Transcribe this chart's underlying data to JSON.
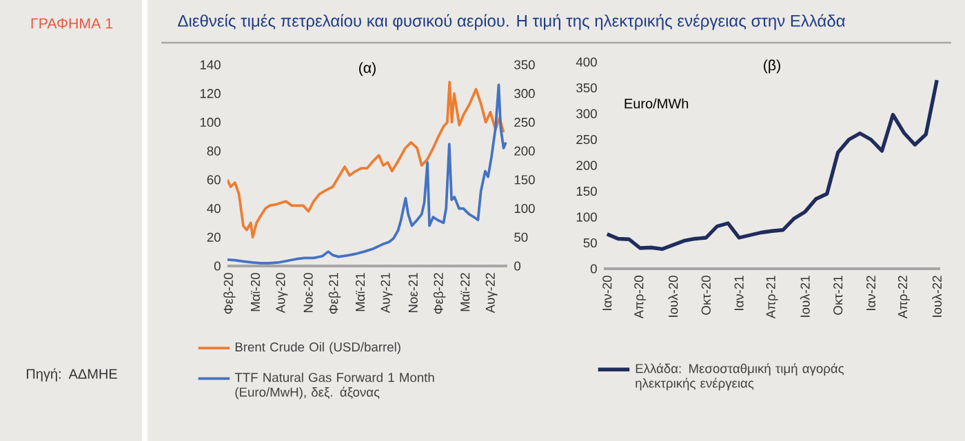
{
  "chart_data": [
    {
      "type": "line",
      "title": "(α)",
      "annotations": [
        "ΓΡΑΦΗΜΑ 1",
        "Διεθνείς τιμές πετρελαίου και φυσικού αερίου. Η τιμή της ηλεκτρικής ενέργειας στην Ελλάδα",
        "Πηγή: ΑΔΜΗΕ"
      ],
      "xlim": [
        "2020-01-25",
        "2022-09-25"
      ],
      "xticks": [
        {
          "value": "2020-02-01",
          "label": "Φεβ-20"
        },
        {
          "value": "2020-05-01",
          "label": "Μαϊ-20"
        },
        {
          "value": "2020-08-01",
          "label": "Αυγ-20"
        },
        {
          "value": "2020-11-01",
          "label": "Νοε-20"
        },
        {
          "value": "2021-02-01",
          "label": "Φεβ-21"
        },
        {
          "value": "2021-05-01",
          "label": "Μαϊ-21"
        },
        {
          "value": "2021-08-01",
          "label": "Αυγ-21"
        },
        {
          "value": "2021-11-01",
          "label": "Νοε-21"
        },
        {
          "value": "2022-02-01",
          "label": "Φεβ-22"
        },
        {
          "value": "2022-05-01",
          "label": "Μαϊ-22"
        },
        {
          "value": "2022-08-01",
          "label": "Αυγ-22"
        }
      ],
      "ylim": [
        0,
        140
      ],
      "yticks": [
        0,
        20,
        40,
        60,
        80,
        100,
        120,
        140
      ],
      "y2lim": [
        0,
        350
      ],
      "y2ticks": [
        0,
        50,
        100,
        150,
        200,
        250,
        300,
        350
      ],
      "legend": "bottom",
      "grid": false,
      "marker": "none",
      "line_style": "solid",
      "series": [
        {
          "name": "Brent Crude Oil (USD/barrel)",
          "color": "#ed7d31",
          "x": [
            "2020-01-25",
            "2020-02-05",
            "2020-02-20",
            "2020-03-05",
            "2020-03-20",
            "2020-04-01",
            "2020-04-15",
            "2020-04-22",
            "2020-05-05",
            "2020-05-20",
            "2020-06-05",
            "2020-06-20",
            "2020-07-15",
            "2020-08-15",
            "2020-09-05",
            "2020-09-25",
            "2020-10-15",
            "2020-11-02",
            "2020-11-20",
            "2020-12-10",
            "2021-01-05",
            "2021-01-25",
            "2021-02-15",
            "2021-03-08",
            "2021-03-25",
            "2021-04-15",
            "2021-05-05",
            "2021-05-25",
            "2021-06-15",
            "2021-07-05",
            "2021-07-20",
            "2021-08-05",
            "2021-08-20",
            "2021-09-10",
            "2021-10-05",
            "2021-10-25",
            "2021-11-15",
            "2021-12-01",
            "2021-12-20",
            "2022-01-10",
            "2022-01-28",
            "2022-02-15",
            "2022-02-28",
            "2022-03-08",
            "2022-03-16",
            "2022-03-24",
            "2022-04-11",
            "2022-04-25",
            "2022-05-15",
            "2022-06-08",
            "2022-06-25",
            "2022-07-12",
            "2022-07-28",
            "2022-08-15",
            "2022-08-29",
            "2022-09-12"
          ],
          "values": [
            60,
            55,
            58,
            50,
            28,
            25,
            30,
            20,
            30,
            35,
            40,
            42,
            43,
            45,
            42,
            42,
            42,
            38,
            45,
            50,
            53,
            55,
            62,
            69,
            63,
            66,
            68,
            68,
            73,
            77,
            70,
            72,
            66,
            73,
            82,
            86,
            82,
            70,
            74,
            82,
            90,
            97,
            100,
            128,
            100,
            120,
            98,
            105,
            112,
            123,
            113,
            100,
            107,
            95,
            103,
            93
          ]
        },
        {
          "name": "TTF Natural Gas Forward 1 Month (Euro/MwH), δεξ. άξονας",
          "color": "#4472c4",
          "axis": "y2",
          "x": [
            "2020-01-25",
            "2020-02-20",
            "2020-03-20",
            "2020-04-20",
            "2020-05-20",
            "2020-06-20",
            "2020-07-20",
            "2020-08-20",
            "2020-09-20",
            "2020-10-20",
            "2020-11-20",
            "2020-12-20",
            "2021-01-10",
            "2021-01-25",
            "2021-02-15",
            "2021-03-15",
            "2021-04-15",
            "2021-05-15",
            "2021-06-15",
            "2021-07-15",
            "2021-08-10",
            "2021-08-25",
            "2021-09-10",
            "2021-09-20",
            "2021-10-06",
            "2021-10-15",
            "2021-10-28",
            "2021-11-15",
            "2021-12-01",
            "2021-12-10",
            "2021-12-21",
            "2021-12-28",
            "2022-01-10",
            "2022-01-25",
            "2022-02-15",
            "2022-02-24",
            "2022-03-07",
            "2022-03-15",
            "2022-03-25",
            "2022-04-10",
            "2022-04-25",
            "2022-05-15",
            "2022-06-01",
            "2022-06-15",
            "2022-06-25",
            "2022-07-10",
            "2022-07-20",
            "2022-08-01",
            "2022-08-15",
            "2022-08-26",
            "2022-09-02",
            "2022-09-12",
            "2022-09-20"
          ],
          "values": [
            11,
            10,
            8,
            6,
            5,
            5,
            6,
            9,
            12,
            14,
            14,
            17,
            25,
            19,
            16,
            18,
            21,
            25,
            30,
            37,
            42,
            48,
            62,
            80,
            118,
            90,
            70,
            80,
            90,
            110,
            180,
            70,
            85,
            80,
            75,
            100,
            212,
            115,
            120,
            100,
            100,
            90,
            85,
            80,
            130,
            165,
            155,
            190,
            240,
            315,
            240,
            205,
            215
          ]
        }
      ]
    },
    {
      "type": "line",
      "title": "(β)",
      "ylabel": "Euro/MWh",
      "categories": [
        "Ιαν-20",
        null,
        null,
        "Απρ-20",
        null,
        null,
        "Ιουλ-20",
        null,
        null,
        "Οκτ-20",
        null,
        null,
        "Ιαν-21",
        null,
        null,
        "Απρ-21",
        null,
        null,
        "Ιουλ-21",
        null,
        null,
        "Οκτ-21",
        null,
        null,
        "Ιαν-22",
        null,
        null,
        "Απρ-22",
        null,
        null,
        "Ιουλ-22"
      ],
      "ylim": [
        0,
        400
      ],
      "yticks": [
        0,
        50,
        100,
        150,
        200,
        250,
        300,
        350,
        400
      ],
      "legend": "bottom",
      "grid": false,
      "marker": "none",
      "line_style": "solid",
      "series": [
        {
          "name": "Ελλάδα: Μεσοσταθμική τιμή αγοράς ηλεκτρικής ενέργειας",
          "color": "#1f2d5c",
          "values": [
            67,
            58,
            57,
            40,
            41,
            38,
            46,
            54,
            58,
            60,
            82,
            88,
            60,
            65,
            70,
            73,
            75,
            97,
            110,
            135,
            145,
            225,
            250,
            262,
            250,
            228,
            298,
            263,
            240,
            260,
            365
          ]
        }
      ]
    }
  ]
}
